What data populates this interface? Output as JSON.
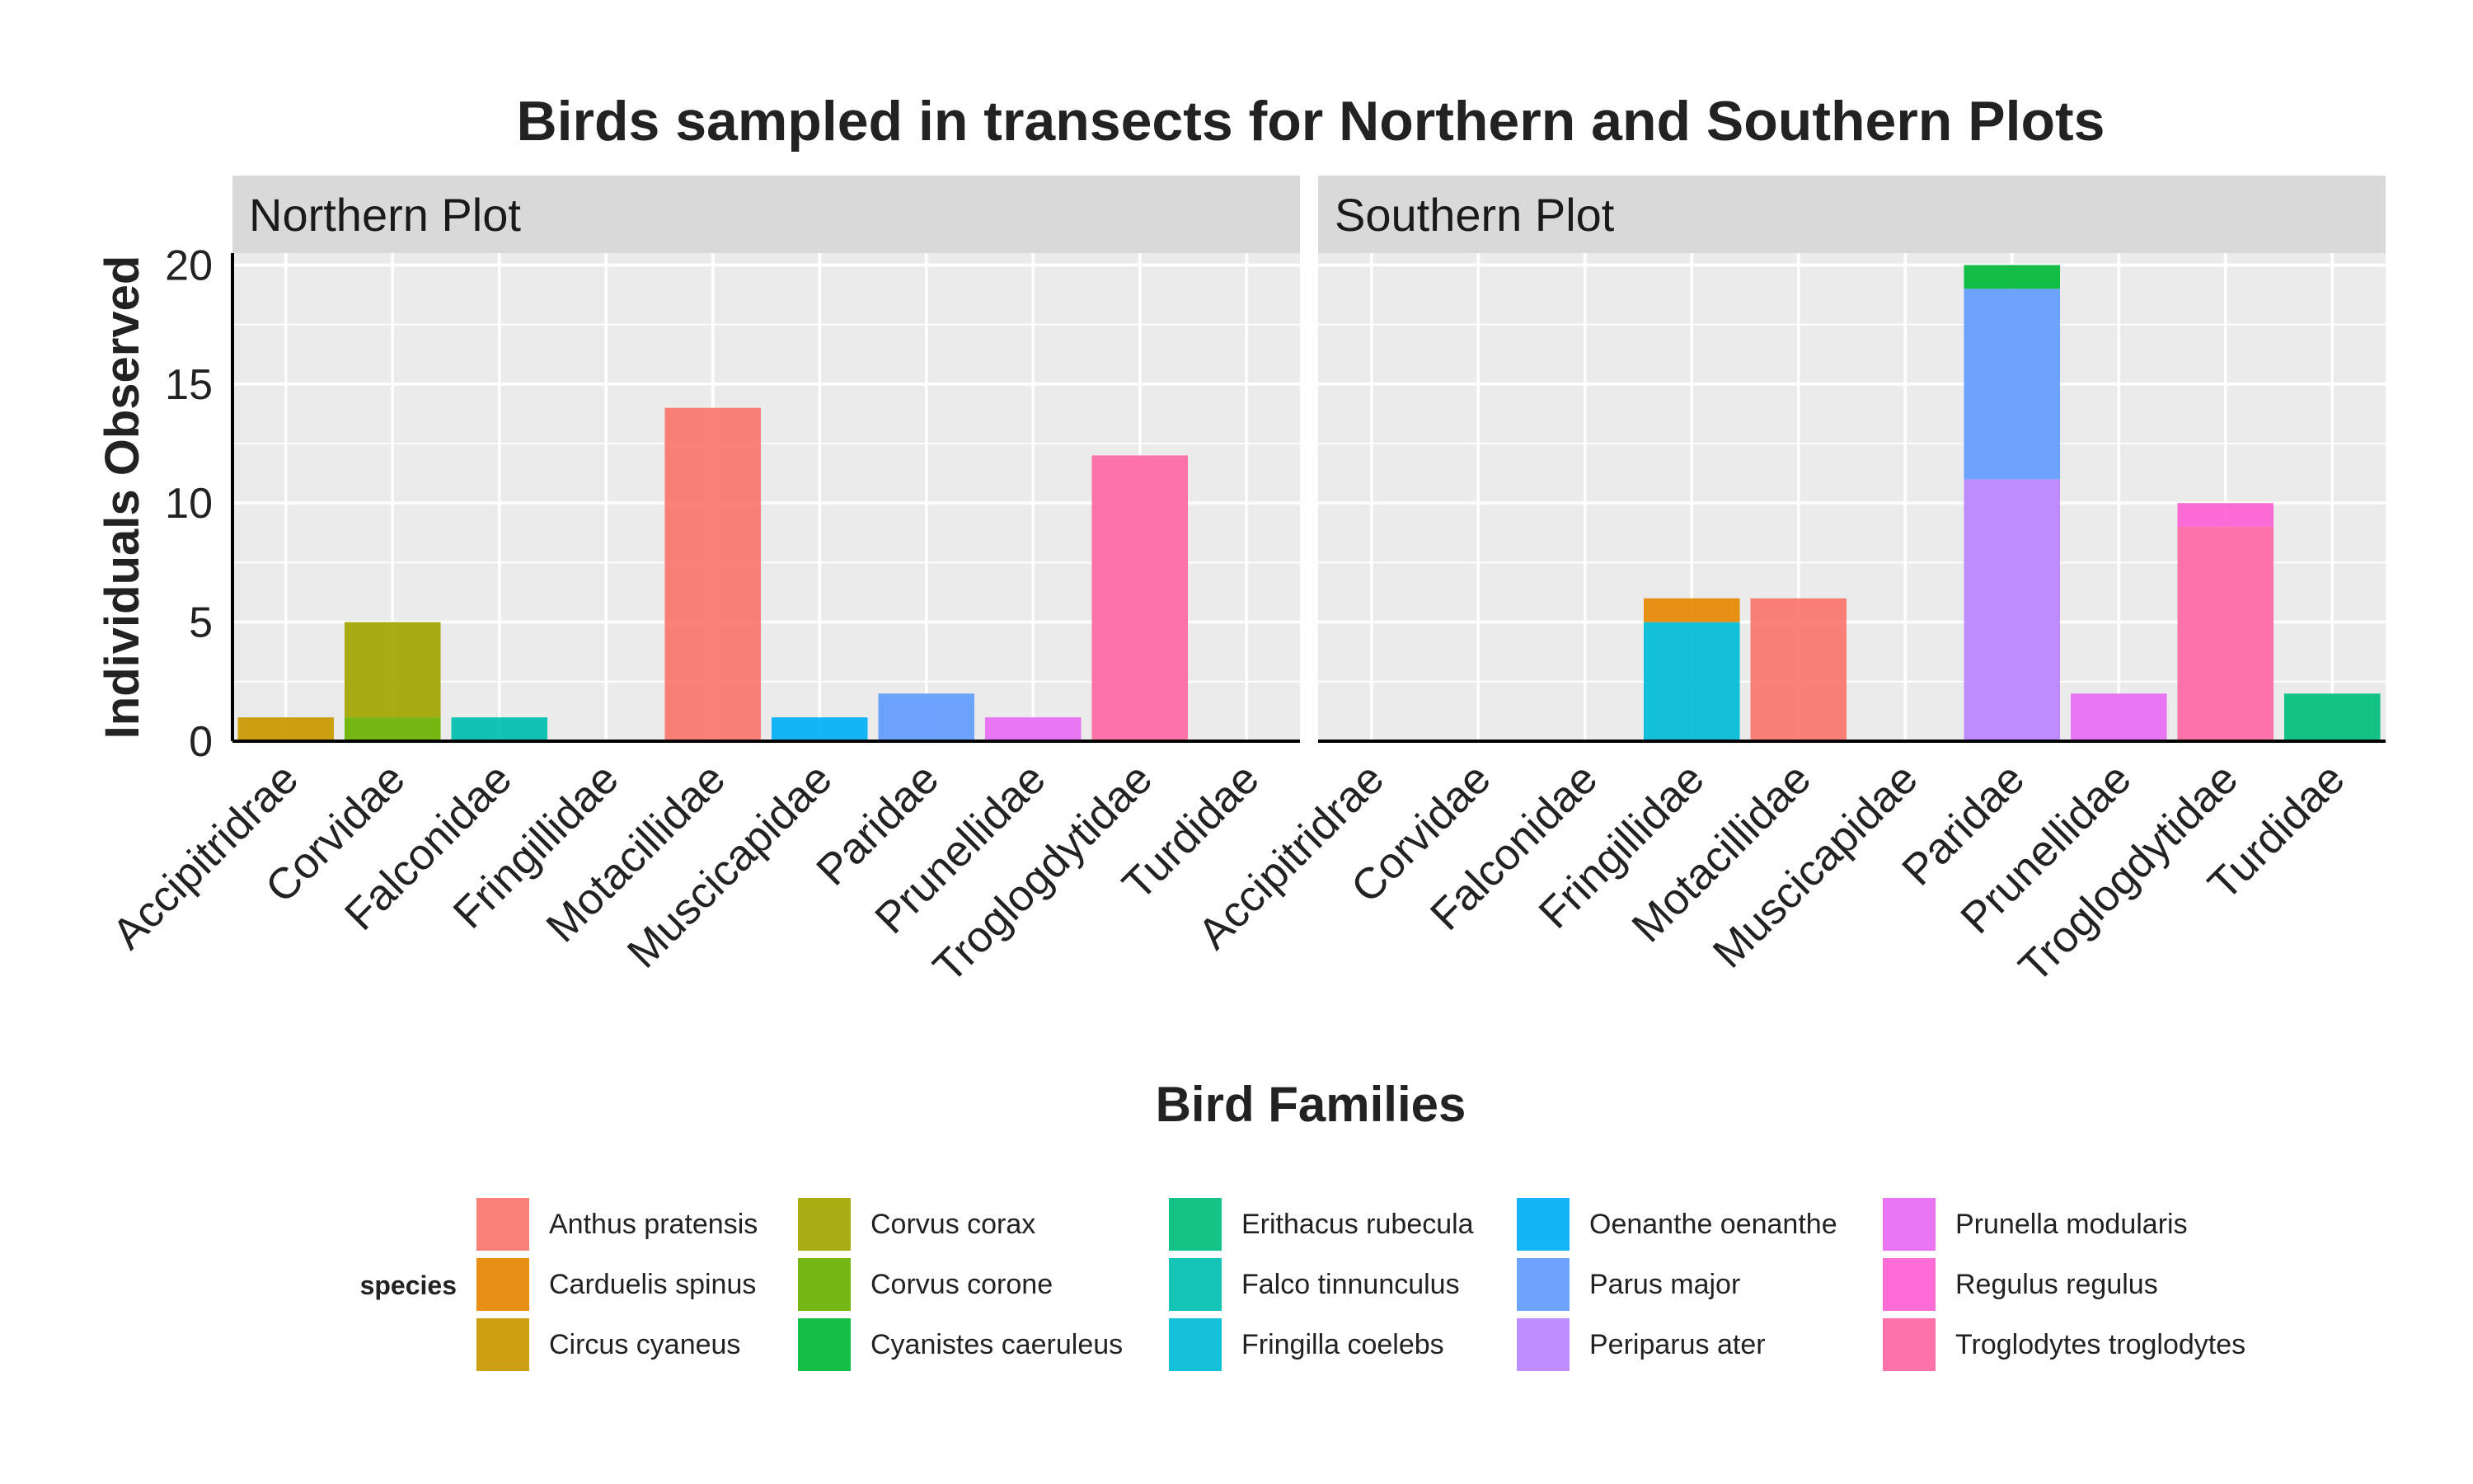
{
  "chart_data": {
    "type": "bar",
    "stacked": true,
    "title": "Birds sampled in transects for Northern and Southern Plots",
    "xlabel": "Bird Families",
    "ylabel": "Individuals Observed",
    "ylim": [
      0,
      20.5
    ],
    "yticks": [
      0,
      5,
      10,
      15,
      20
    ],
    "grid": true,
    "legend_position": "bottom",
    "legend_title": "species",
    "categories": [
      "Accipitridrae",
      "Corvidae",
      "Falconidae",
      "Fringillidae",
      "Motacillidae",
      "Muscicapidae",
      "Paridae",
      "Prunellidae",
      "Troglogdytidae",
      "Turdidae"
    ],
    "species": [
      {
        "name": "Anthus pratensis",
        "color": "#F8766D"
      },
      {
        "name": "Carduelis spinus",
        "color": "#E58700"
      },
      {
        "name": "Circus cyaneus",
        "color": "#C99800"
      },
      {
        "name": "Corvus corax",
        "color": "#A3A500"
      },
      {
        "name": "Corvus corone",
        "color": "#6BB100"
      },
      {
        "name": "Cyanistes caeruleus",
        "color": "#00BA38"
      },
      {
        "name": "Erithacus rubecula",
        "color": "#00BF7D"
      },
      {
        "name": "Falco tinnunculus",
        "color": "#00C0AF"
      },
      {
        "name": "Fringilla coelebs",
        "color": "#00BCD8"
      },
      {
        "name": "Oenanthe oenanthe",
        "color": "#00B0F6"
      },
      {
        "name": "Parus major",
        "color": "#619CFF"
      },
      {
        "name": "Periparus ater",
        "color": "#B983FF"
      },
      {
        "name": "Prunella modularis",
        "color": "#E76BF3"
      },
      {
        "name": "Regulus regulus",
        "color": "#FD61D1"
      },
      {
        "name": "Troglodytes troglodytes",
        "color": "#FF67A4"
      }
    ],
    "panels": [
      {
        "name": "Northern Plot",
        "bars": [
          {
            "category": "Accipitridrae",
            "segments": [
              {
                "species": "Circus cyaneus",
                "value": 1
              }
            ]
          },
          {
            "category": "Corvidae",
            "segments": [
              {
                "species": "Corvus corone",
                "value": 1
              },
              {
                "species": "Corvus corax",
                "value": 4
              }
            ]
          },
          {
            "category": "Falconidae",
            "segments": [
              {
                "species": "Falco tinnunculus",
                "value": 1
              }
            ]
          },
          {
            "category": "Motacillidae",
            "segments": [
              {
                "species": "Anthus pratensis",
                "value": 14
              }
            ]
          },
          {
            "category": "Muscicapidae",
            "segments": [
              {
                "species": "Oenanthe oenanthe",
                "value": 1
              }
            ]
          },
          {
            "category": "Paridae",
            "segments": [
              {
                "species": "Parus major",
                "value": 2
              }
            ]
          },
          {
            "category": "Prunellidae",
            "segments": [
              {
                "species": "Prunella modularis",
                "value": 1
              }
            ]
          },
          {
            "category": "Troglogdytidae",
            "segments": [
              {
                "species": "Troglodytes troglodytes",
                "value": 12
              }
            ]
          }
        ]
      },
      {
        "name": "Southern Plot",
        "bars": [
          {
            "category": "Fringillidae",
            "segments": [
              {
                "species": "Fringilla coelebs",
                "value": 5
              },
              {
                "species": "Carduelis spinus",
                "value": 1
              }
            ]
          },
          {
            "category": "Motacillidae",
            "segments": [
              {
                "species": "Anthus pratensis",
                "value": 6
              }
            ]
          },
          {
            "category": "Paridae",
            "segments": [
              {
                "species": "Periparus ater",
                "value": 11
              },
              {
                "species": "Parus major",
                "value": 8
              },
              {
                "species": "Cyanistes caeruleus",
                "value": 1
              }
            ]
          },
          {
            "category": "Prunellidae",
            "segments": [
              {
                "species": "Prunella modularis",
                "value": 2
              }
            ]
          },
          {
            "category": "Troglogdytidae",
            "segments": [
              {
                "species": "Troglodytes troglodytes",
                "value": 9
              },
              {
                "species": "Regulus regulus",
                "value": 1
              }
            ]
          },
          {
            "category": "Turdidae",
            "segments": [
              {
                "species": "Erithacus rubecula",
                "value": 2
              }
            ]
          }
        ]
      }
    ]
  }
}
